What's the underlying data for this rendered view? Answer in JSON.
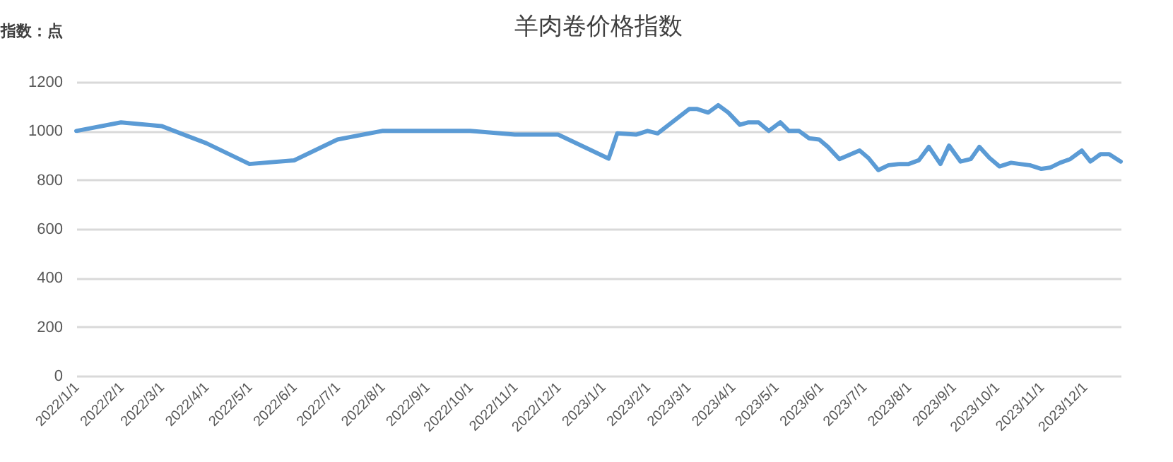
{
  "chart_data": {
    "type": "line",
    "title": "羊肉卷价格指数",
    "ylabel": "指数：点",
    "x": [
      "2022-01-01",
      "2022-02-01",
      "2022-03-01",
      "2022-04-01",
      "2022-05-01",
      "2022-06-01",
      "2022-07-01",
      "2022-08-01",
      "2022-09-01",
      "2022-10-01",
      "2022-11-01",
      "2022-12-01",
      "2023-01-05",
      "2023-01-11",
      "2023-01-24",
      "2023-02-01",
      "2023-02-08",
      "2023-03-02",
      "2023-03-07",
      "2023-03-15",
      "2023-03-22",
      "2023-03-29",
      "2023-04-06",
      "2023-04-12",
      "2023-04-19",
      "2023-04-26",
      "2023-05-04",
      "2023-05-10",
      "2023-05-17",
      "2023-05-24",
      "2023-05-31",
      "2023-06-06",
      "2023-06-14",
      "2023-06-28",
      "2023-07-04",
      "2023-07-11",
      "2023-07-18",
      "2023-07-26",
      "2023-08-01",
      "2023-08-08",
      "2023-08-15",
      "2023-08-23",
      "2023-08-29",
      "2023-09-06",
      "2023-09-13",
      "2023-09-19",
      "2023-09-26",
      "2023-10-03",
      "2023-10-11",
      "2023-10-17",
      "2023-10-24",
      "2023-11-01",
      "2023-11-07",
      "2023-11-14",
      "2023-11-21",
      "2023-11-29",
      "2023-12-05",
      "2023-12-12",
      "2023-12-18",
      "2023-12-26"
    ],
    "series": [
      {
        "color": "#5b9bd5",
        "values": [
          1000,
          1035,
          1020,
          950,
          865,
          880,
          965,
          1000,
          1000,
          1000,
          985,
          985,
          887,
          990,
          985,
          1000,
          990,
          1090,
          1090,
          1075,
          1105,
          1075,
          1025,
          1035,
          1035,
          1000,
          1035,
          1000,
          1000,
          970,
          965,
          935,
          885,
          920,
          890,
          840,
          860,
          865,
          865,
          880,
          935,
          865,
          940,
          875,
          885,
          935,
          890,
          855,
          870,
          865,
          860,
          845,
          850,
          870,
          885,
          920,
          875,
          905,
          905,
          875
        ]
      }
    ],
    "xlim": [
      "2022-01-01",
      "2023-12-26"
    ],
    "xticks": [
      {
        "value": "2022-01-01",
        "label": "2022/1/1"
      },
      {
        "value": "2022-02-01",
        "label": "2022/2/1"
      },
      {
        "value": "2022-03-01",
        "label": "2022/3/1"
      },
      {
        "value": "2022-04-01",
        "label": "2022/4/1"
      },
      {
        "value": "2022-05-01",
        "label": "2022/5/1"
      },
      {
        "value": "2022-06-01",
        "label": "2022/6/1"
      },
      {
        "value": "2022-07-01",
        "label": "2022/7/1"
      },
      {
        "value": "2022-08-01",
        "label": "2022/8/1"
      },
      {
        "value": "2022-09-01",
        "label": "2022/9/1"
      },
      {
        "value": "2022-10-01",
        "label": "2022/10/1"
      },
      {
        "value": "2022-11-01",
        "label": "2022/11/1"
      },
      {
        "value": "2022-12-01",
        "label": "2022/12/1"
      },
      {
        "value": "2023-01-01",
        "label": "2023/1/1"
      },
      {
        "value": "2023-02-01",
        "label": "2023/2/1"
      },
      {
        "value": "2023-03-01",
        "label": "2023/3/1"
      },
      {
        "value": "2023-04-01",
        "label": "2023/4/1"
      },
      {
        "value": "2023-05-01",
        "label": "2023/5/1"
      },
      {
        "value": "2023-06-01",
        "label": "2023/6/1"
      },
      {
        "value": "2023-07-01",
        "label": "2023/7/1"
      },
      {
        "value": "2023-08-01",
        "label": "2023/8/1"
      },
      {
        "value": "2023-09-01",
        "label": "2023/9/1"
      },
      {
        "value": "2023-10-01",
        "label": "2023/10/1"
      },
      {
        "value": "2023-11-01",
        "label": "2023/11/1"
      },
      {
        "value": "2023-12-01",
        "label": "2023/12/1"
      }
    ],
    "ylim": [
      0,
      1200
    ],
    "yticks": [
      0,
      200,
      400,
      600,
      800,
      1000,
      1200
    ],
    "grid": "y",
    "marker": "none",
    "line_style": "solid"
  }
}
